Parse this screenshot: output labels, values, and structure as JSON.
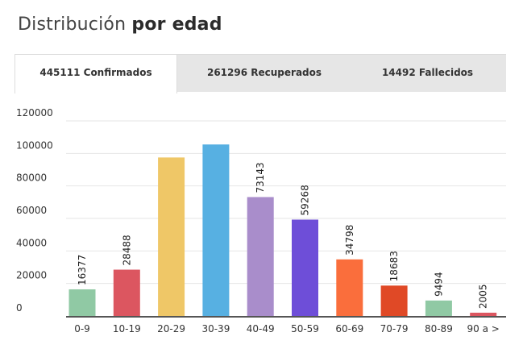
{
  "title": {
    "light": "Distribución",
    "bold": "por edad"
  },
  "tabs": [
    {
      "label": "445111 Confirmados",
      "active": true
    },
    {
      "label": "261296 Recuperados",
      "active": false
    },
    {
      "label": "14492 Fallecidos",
      "active": false
    }
  ],
  "chart_data": {
    "type": "bar",
    "categories": [
      "0-9",
      "10-19",
      "20-29",
      "30-39",
      "40-49",
      "50-59",
      "60-69",
      "70-79",
      "80-89",
      "90 a >"
    ],
    "values": [
      16377,
      28488,
      97500,
      105500,
      73143,
      59268,
      34798,
      18683,
      9494,
      2005
    ],
    "data_labels": [
      "16377",
      "28488",
      "",
      "",
      "73143",
      "59268",
      "34798",
      "18683",
      "9494",
      "2005"
    ],
    "colors": [
      "#90c9a4",
      "#dc5660",
      "#efc767",
      "#57b0e2",
      "#a98dcb",
      "#6e4ed8",
      "#fa6e3c",
      "#e04926",
      "#90c9a4",
      "#dc5660"
    ],
    "yticks": [
      0,
      20000,
      40000,
      60000,
      80000,
      100000,
      120000
    ],
    "ytick_labels": [
      "0",
      "20000",
      "40000",
      "60000",
      "80000",
      "100000",
      "120000"
    ],
    "ylim": [
      0,
      120000
    ],
    "grid": true
  }
}
